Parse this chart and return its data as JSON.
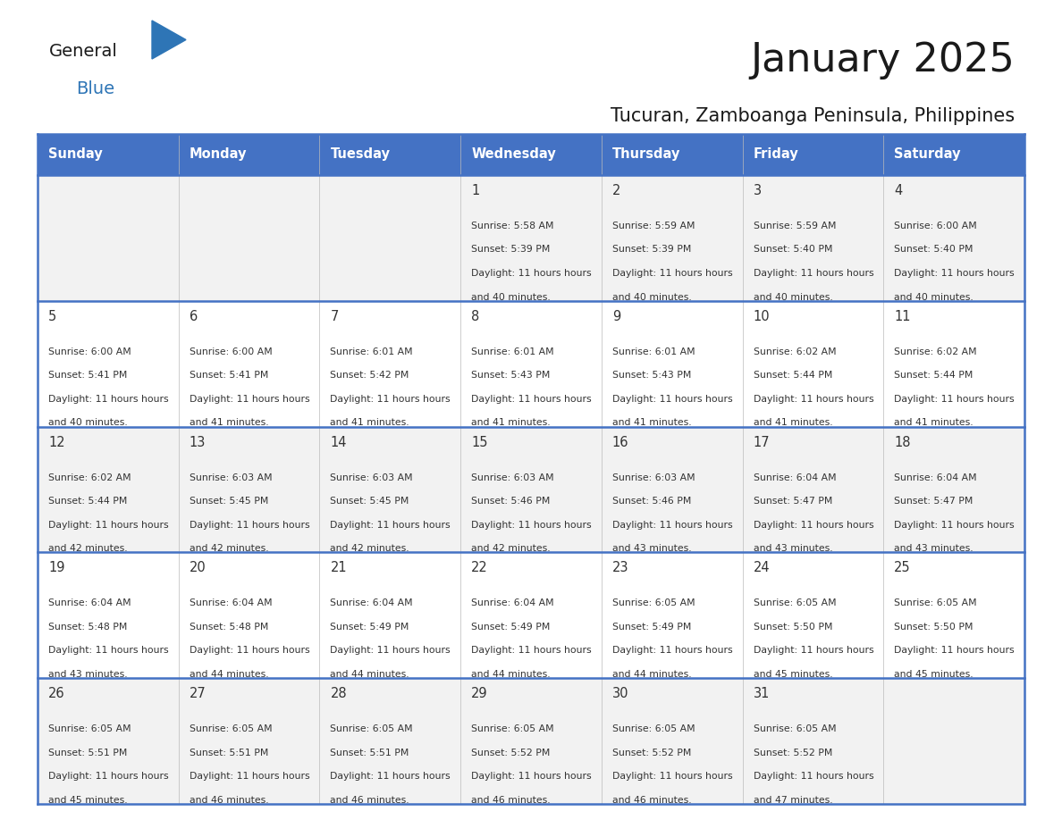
{
  "title": "January 2025",
  "subtitle": "Tucuran, Zamboanga Peninsula, Philippines",
  "days_of_week": [
    "Sunday",
    "Monday",
    "Tuesday",
    "Wednesday",
    "Thursday",
    "Friday",
    "Saturday"
  ],
  "header_bg_color": "#4472C4",
  "header_text_color": "#FFFFFF",
  "row_bg_even": "#F2F2F2",
  "row_bg_odd": "#FFFFFF",
  "grid_line_color": "#4472C4",
  "cell_text_color": "#333333",
  "calendar_data": [
    [
      null,
      null,
      null,
      {
        "day": 1,
        "sunrise": "5:58 AM",
        "sunset": "5:39 PM",
        "daylight": "11 hours and 40 minutes"
      },
      {
        "day": 2,
        "sunrise": "5:59 AM",
        "sunset": "5:39 PM",
        "daylight": "11 hours and 40 minutes"
      },
      {
        "day": 3,
        "sunrise": "5:59 AM",
        "sunset": "5:40 PM",
        "daylight": "11 hours and 40 minutes"
      },
      {
        "day": 4,
        "sunrise": "6:00 AM",
        "sunset": "5:40 PM",
        "daylight": "11 hours and 40 minutes"
      }
    ],
    [
      {
        "day": 5,
        "sunrise": "6:00 AM",
        "sunset": "5:41 PM",
        "daylight": "11 hours and 40 minutes"
      },
      {
        "day": 6,
        "sunrise": "6:00 AM",
        "sunset": "5:41 PM",
        "daylight": "11 hours and 41 minutes"
      },
      {
        "day": 7,
        "sunrise": "6:01 AM",
        "sunset": "5:42 PM",
        "daylight": "11 hours and 41 minutes"
      },
      {
        "day": 8,
        "sunrise": "6:01 AM",
        "sunset": "5:43 PM",
        "daylight": "11 hours and 41 minutes"
      },
      {
        "day": 9,
        "sunrise": "6:01 AM",
        "sunset": "5:43 PM",
        "daylight": "11 hours and 41 minutes"
      },
      {
        "day": 10,
        "sunrise": "6:02 AM",
        "sunset": "5:44 PM",
        "daylight": "11 hours and 41 minutes"
      },
      {
        "day": 11,
        "sunrise": "6:02 AM",
        "sunset": "5:44 PM",
        "daylight": "11 hours and 41 minutes"
      }
    ],
    [
      {
        "day": 12,
        "sunrise": "6:02 AM",
        "sunset": "5:44 PM",
        "daylight": "11 hours and 42 minutes"
      },
      {
        "day": 13,
        "sunrise": "6:03 AM",
        "sunset": "5:45 PM",
        "daylight": "11 hours and 42 minutes"
      },
      {
        "day": 14,
        "sunrise": "6:03 AM",
        "sunset": "5:45 PM",
        "daylight": "11 hours and 42 minutes"
      },
      {
        "day": 15,
        "sunrise": "6:03 AM",
        "sunset": "5:46 PM",
        "daylight": "11 hours and 42 minutes"
      },
      {
        "day": 16,
        "sunrise": "6:03 AM",
        "sunset": "5:46 PM",
        "daylight": "11 hours and 43 minutes"
      },
      {
        "day": 17,
        "sunrise": "6:04 AM",
        "sunset": "5:47 PM",
        "daylight": "11 hours and 43 minutes"
      },
      {
        "day": 18,
        "sunrise": "6:04 AM",
        "sunset": "5:47 PM",
        "daylight": "11 hours and 43 minutes"
      }
    ],
    [
      {
        "day": 19,
        "sunrise": "6:04 AM",
        "sunset": "5:48 PM",
        "daylight": "11 hours and 43 minutes"
      },
      {
        "day": 20,
        "sunrise": "6:04 AM",
        "sunset": "5:48 PM",
        "daylight": "11 hours and 44 minutes"
      },
      {
        "day": 21,
        "sunrise": "6:04 AM",
        "sunset": "5:49 PM",
        "daylight": "11 hours and 44 minutes"
      },
      {
        "day": 22,
        "sunrise": "6:04 AM",
        "sunset": "5:49 PM",
        "daylight": "11 hours and 44 minutes"
      },
      {
        "day": 23,
        "sunrise": "6:05 AM",
        "sunset": "5:49 PM",
        "daylight": "11 hours and 44 minutes"
      },
      {
        "day": 24,
        "sunrise": "6:05 AM",
        "sunset": "5:50 PM",
        "daylight": "11 hours and 45 minutes"
      },
      {
        "day": 25,
        "sunrise": "6:05 AM",
        "sunset": "5:50 PM",
        "daylight": "11 hours and 45 minutes"
      }
    ],
    [
      {
        "day": 26,
        "sunrise": "6:05 AM",
        "sunset": "5:51 PM",
        "daylight": "11 hours and 45 minutes"
      },
      {
        "day": 27,
        "sunrise": "6:05 AM",
        "sunset": "5:51 PM",
        "daylight": "11 hours and 46 minutes"
      },
      {
        "day": 28,
        "sunrise": "6:05 AM",
        "sunset": "5:51 PM",
        "daylight": "11 hours and 46 minutes"
      },
      {
        "day": 29,
        "sunrise": "6:05 AM",
        "sunset": "5:52 PM",
        "daylight": "11 hours and 46 minutes"
      },
      {
        "day": 30,
        "sunrise": "6:05 AM",
        "sunset": "5:52 PM",
        "daylight": "11 hours and 46 minutes"
      },
      {
        "day": 31,
        "sunrise": "6:05 AM",
        "sunset": "5:52 PM",
        "daylight": "11 hours and 47 minutes"
      },
      null
    ]
  ]
}
